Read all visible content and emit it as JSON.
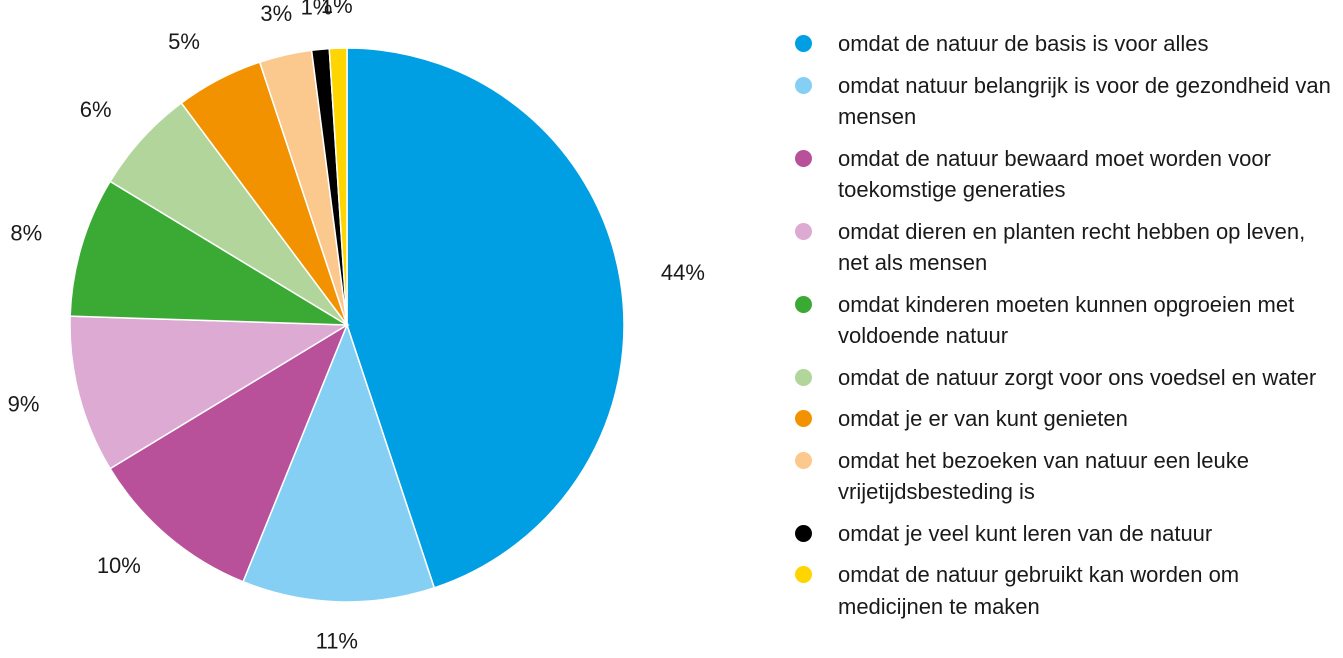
{
  "chart_data": {
    "type": "pie",
    "categories": [
      "omdat de natuur de basis is voor alles",
      "omdat natuur belangrijk is voor de gezondheid van mensen",
      "omdat de natuur bewaard moet worden voor toekomstige generaties",
      "omdat dieren en planten recht hebben op leven, net als mensen",
      "omdat kinderen moeten kunnen opgroeien met voldoende natuur",
      "omdat de natuur zorgt voor ons voedsel en water",
      "omdat je er van kunt genieten",
      "omdat het bezoeken van natuur een leuke vrijetijdsbesteding is",
      "omdat je veel kunt leren van de natuur",
      "omdat de natuur gebruikt kan worden om medicijnen te maken"
    ],
    "values": [
      44,
      11,
      10,
      9,
      8,
      6,
      5,
      3,
      1,
      1
    ],
    "value_labels": [
      "44%",
      "11%",
      "10%",
      "9%",
      "8%",
      "6%",
      "5%",
      "3%",
      "1%",
      "1%"
    ],
    "colors": [
      "#009fe3",
      "#86cff4",
      "#b9519a",
      "#dcaad2",
      "#3aaa35",
      "#b1d59b",
      "#f39200",
      "#fbc98e",
      "#000000",
      "#ffd500"
    ],
    "legend": "right"
  }
}
